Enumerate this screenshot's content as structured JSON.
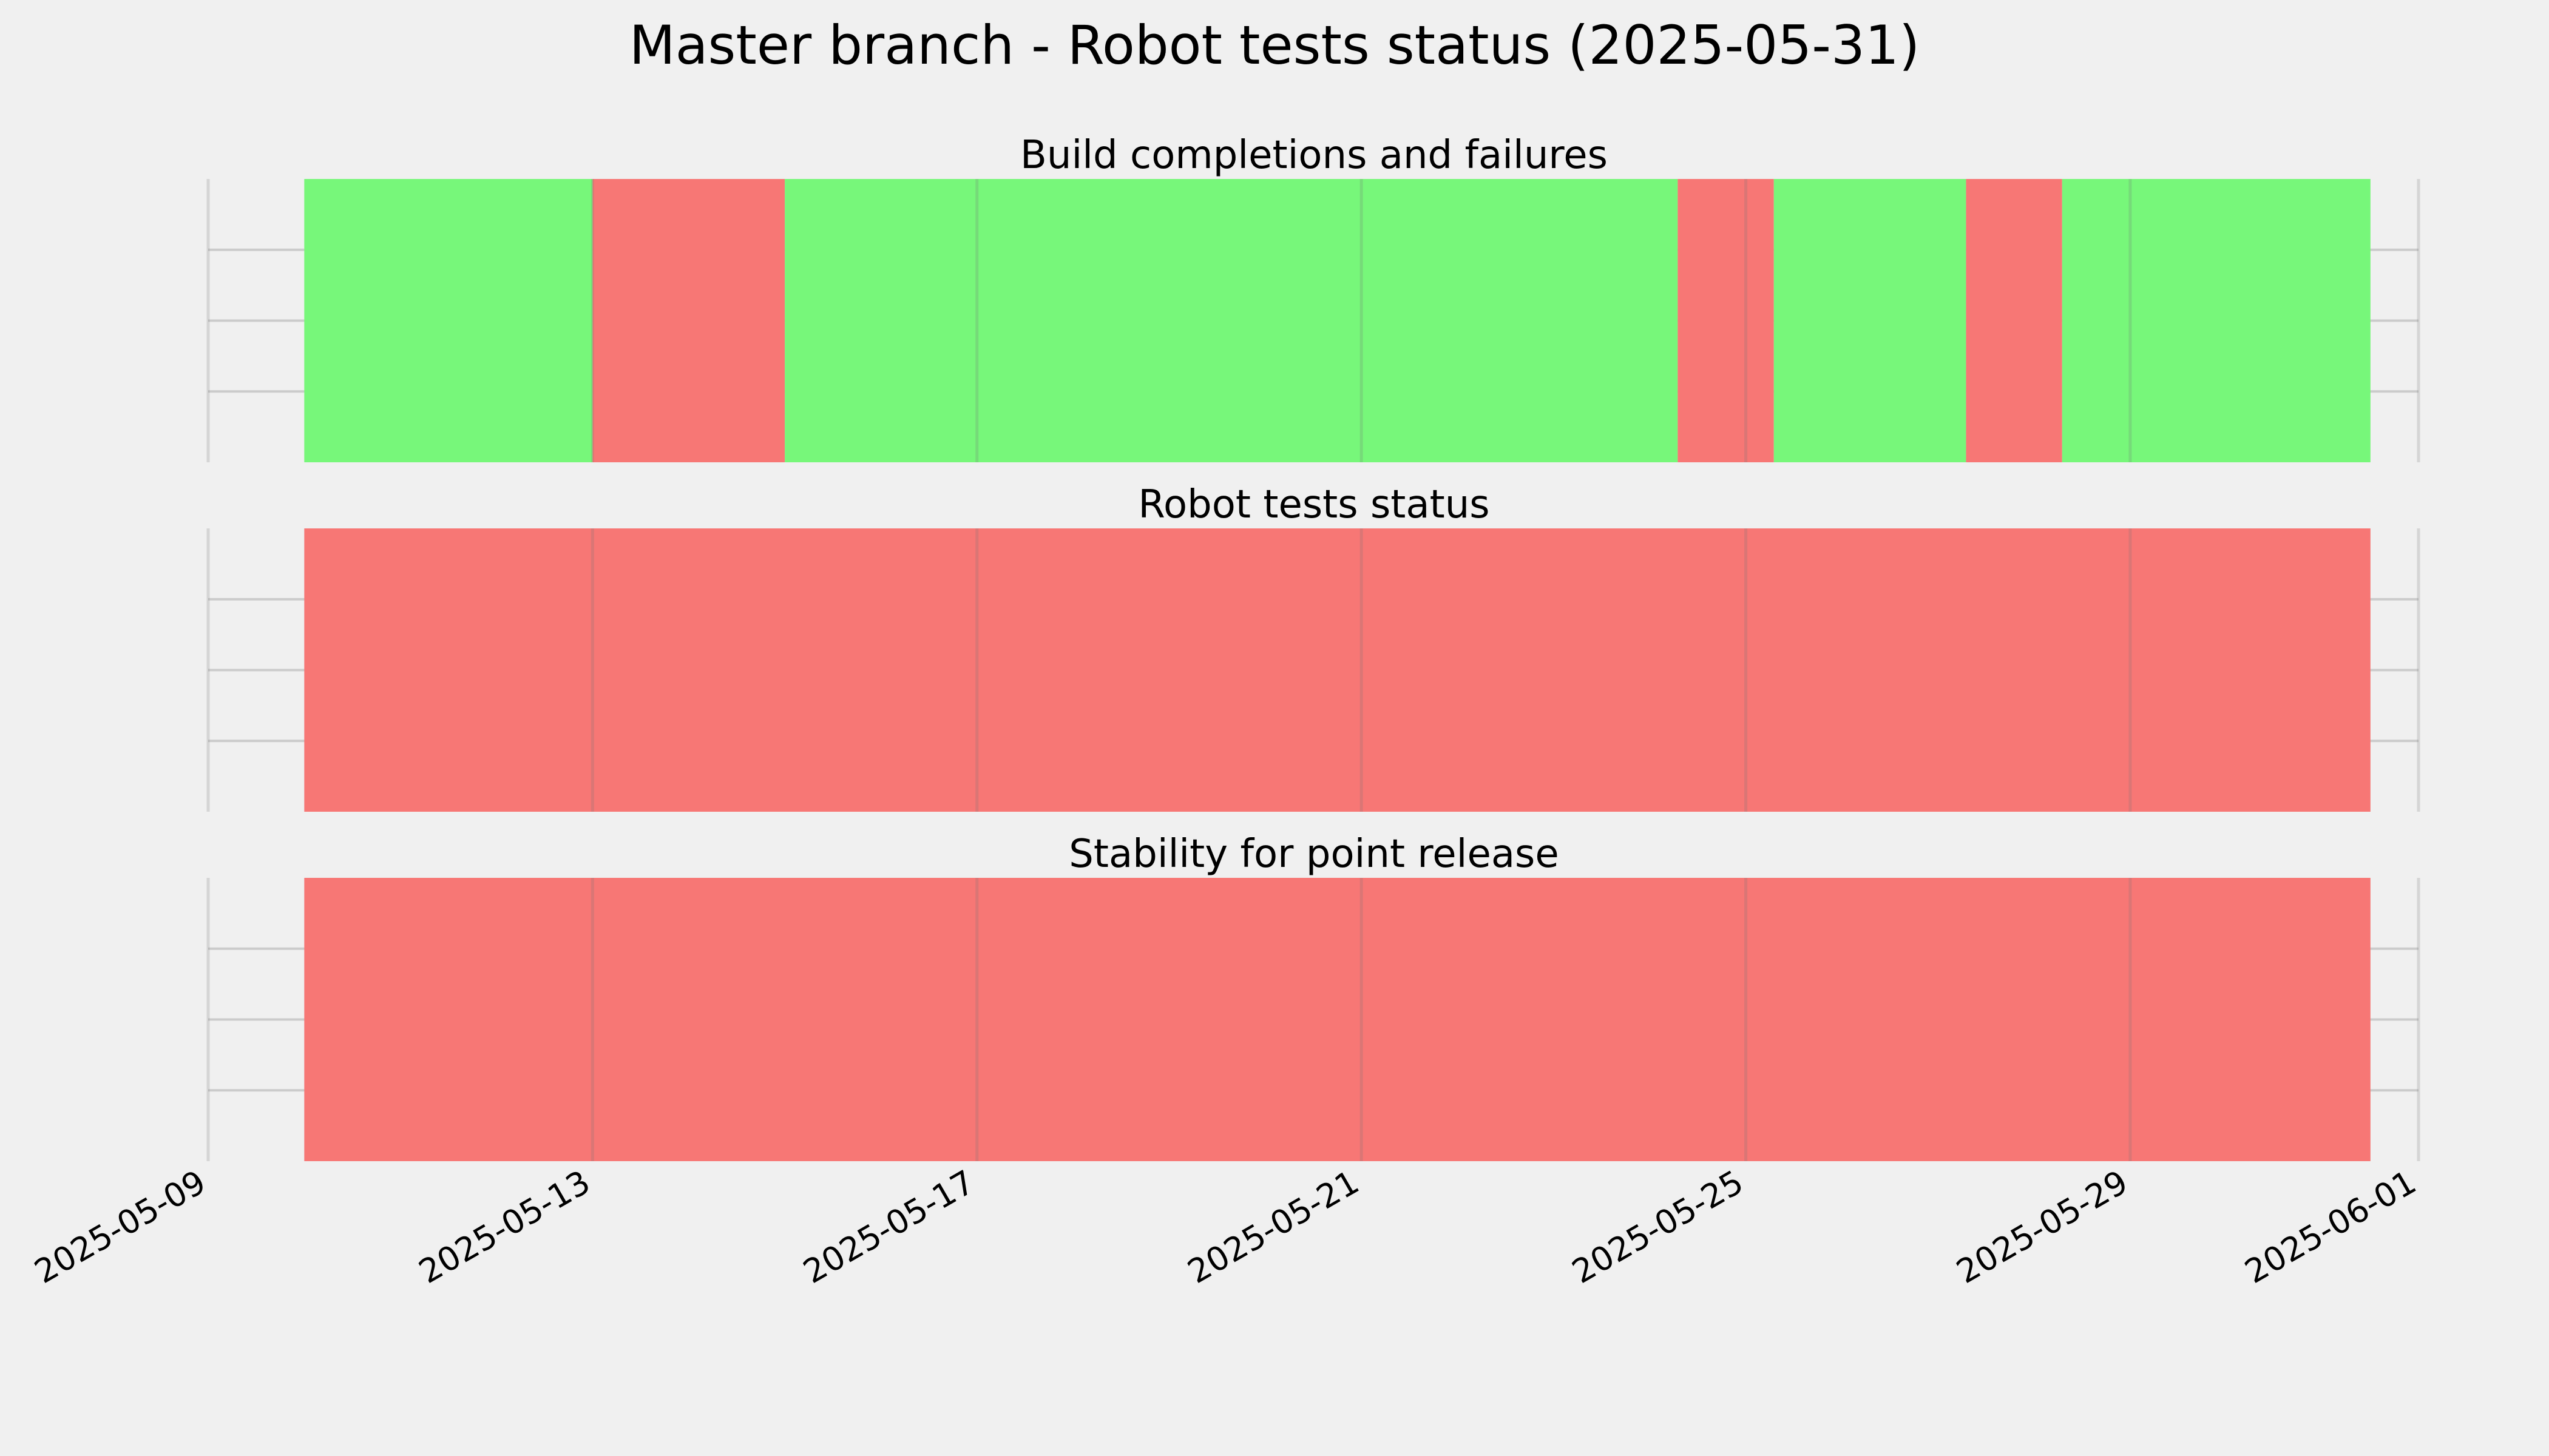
{
  "chart_data": {
    "type": "timeline",
    "title": "Master branch - Robot tests status (2025-05-31)",
    "xlim": [
      "2025-05-09",
      "2025-06-01"
    ],
    "x_ticks": [
      "2025-05-09",
      "2025-05-13",
      "2025-05-17",
      "2025-05-21",
      "2025-05-25",
      "2025-05-29",
      "2025-06-01"
    ],
    "grid": true,
    "colors": {
      "pass": "#77f77a",
      "fail": "#f77775",
      "background": "#f0f0f0",
      "grid": "#cbcbcb"
    },
    "panels": [
      {
        "title": "Build completions and failures",
        "segments": [
          {
            "start": "2025-05-10T00:00",
            "end": "2025-05-13T00:00",
            "status": "pass"
          },
          {
            "start": "2025-05-13T00:00",
            "end": "2025-05-15T00:00",
            "status": "fail"
          },
          {
            "start": "2025-05-15T00:00",
            "end": "2025-05-24T07:00",
            "status": "pass"
          },
          {
            "start": "2025-05-24T07:00",
            "end": "2025-05-25T07:00",
            "status": "fail"
          },
          {
            "start": "2025-05-25T07:00",
            "end": "2025-05-27T07:00",
            "status": "pass"
          },
          {
            "start": "2025-05-27T07:00",
            "end": "2025-05-28T07:00",
            "status": "fail"
          },
          {
            "start": "2025-05-28T07:00",
            "end": "2025-05-31T12:00",
            "status": "pass"
          }
        ]
      },
      {
        "title": "Robot tests status",
        "segments": [
          {
            "start": "2025-05-10T00:00",
            "end": "2025-05-31T12:00",
            "status": "fail"
          }
        ]
      },
      {
        "title": "Stability for point release",
        "segments": [
          {
            "start": "2025-05-10T00:00",
            "end": "2025-05-31T12:00",
            "status": "fail"
          }
        ]
      }
    ]
  }
}
